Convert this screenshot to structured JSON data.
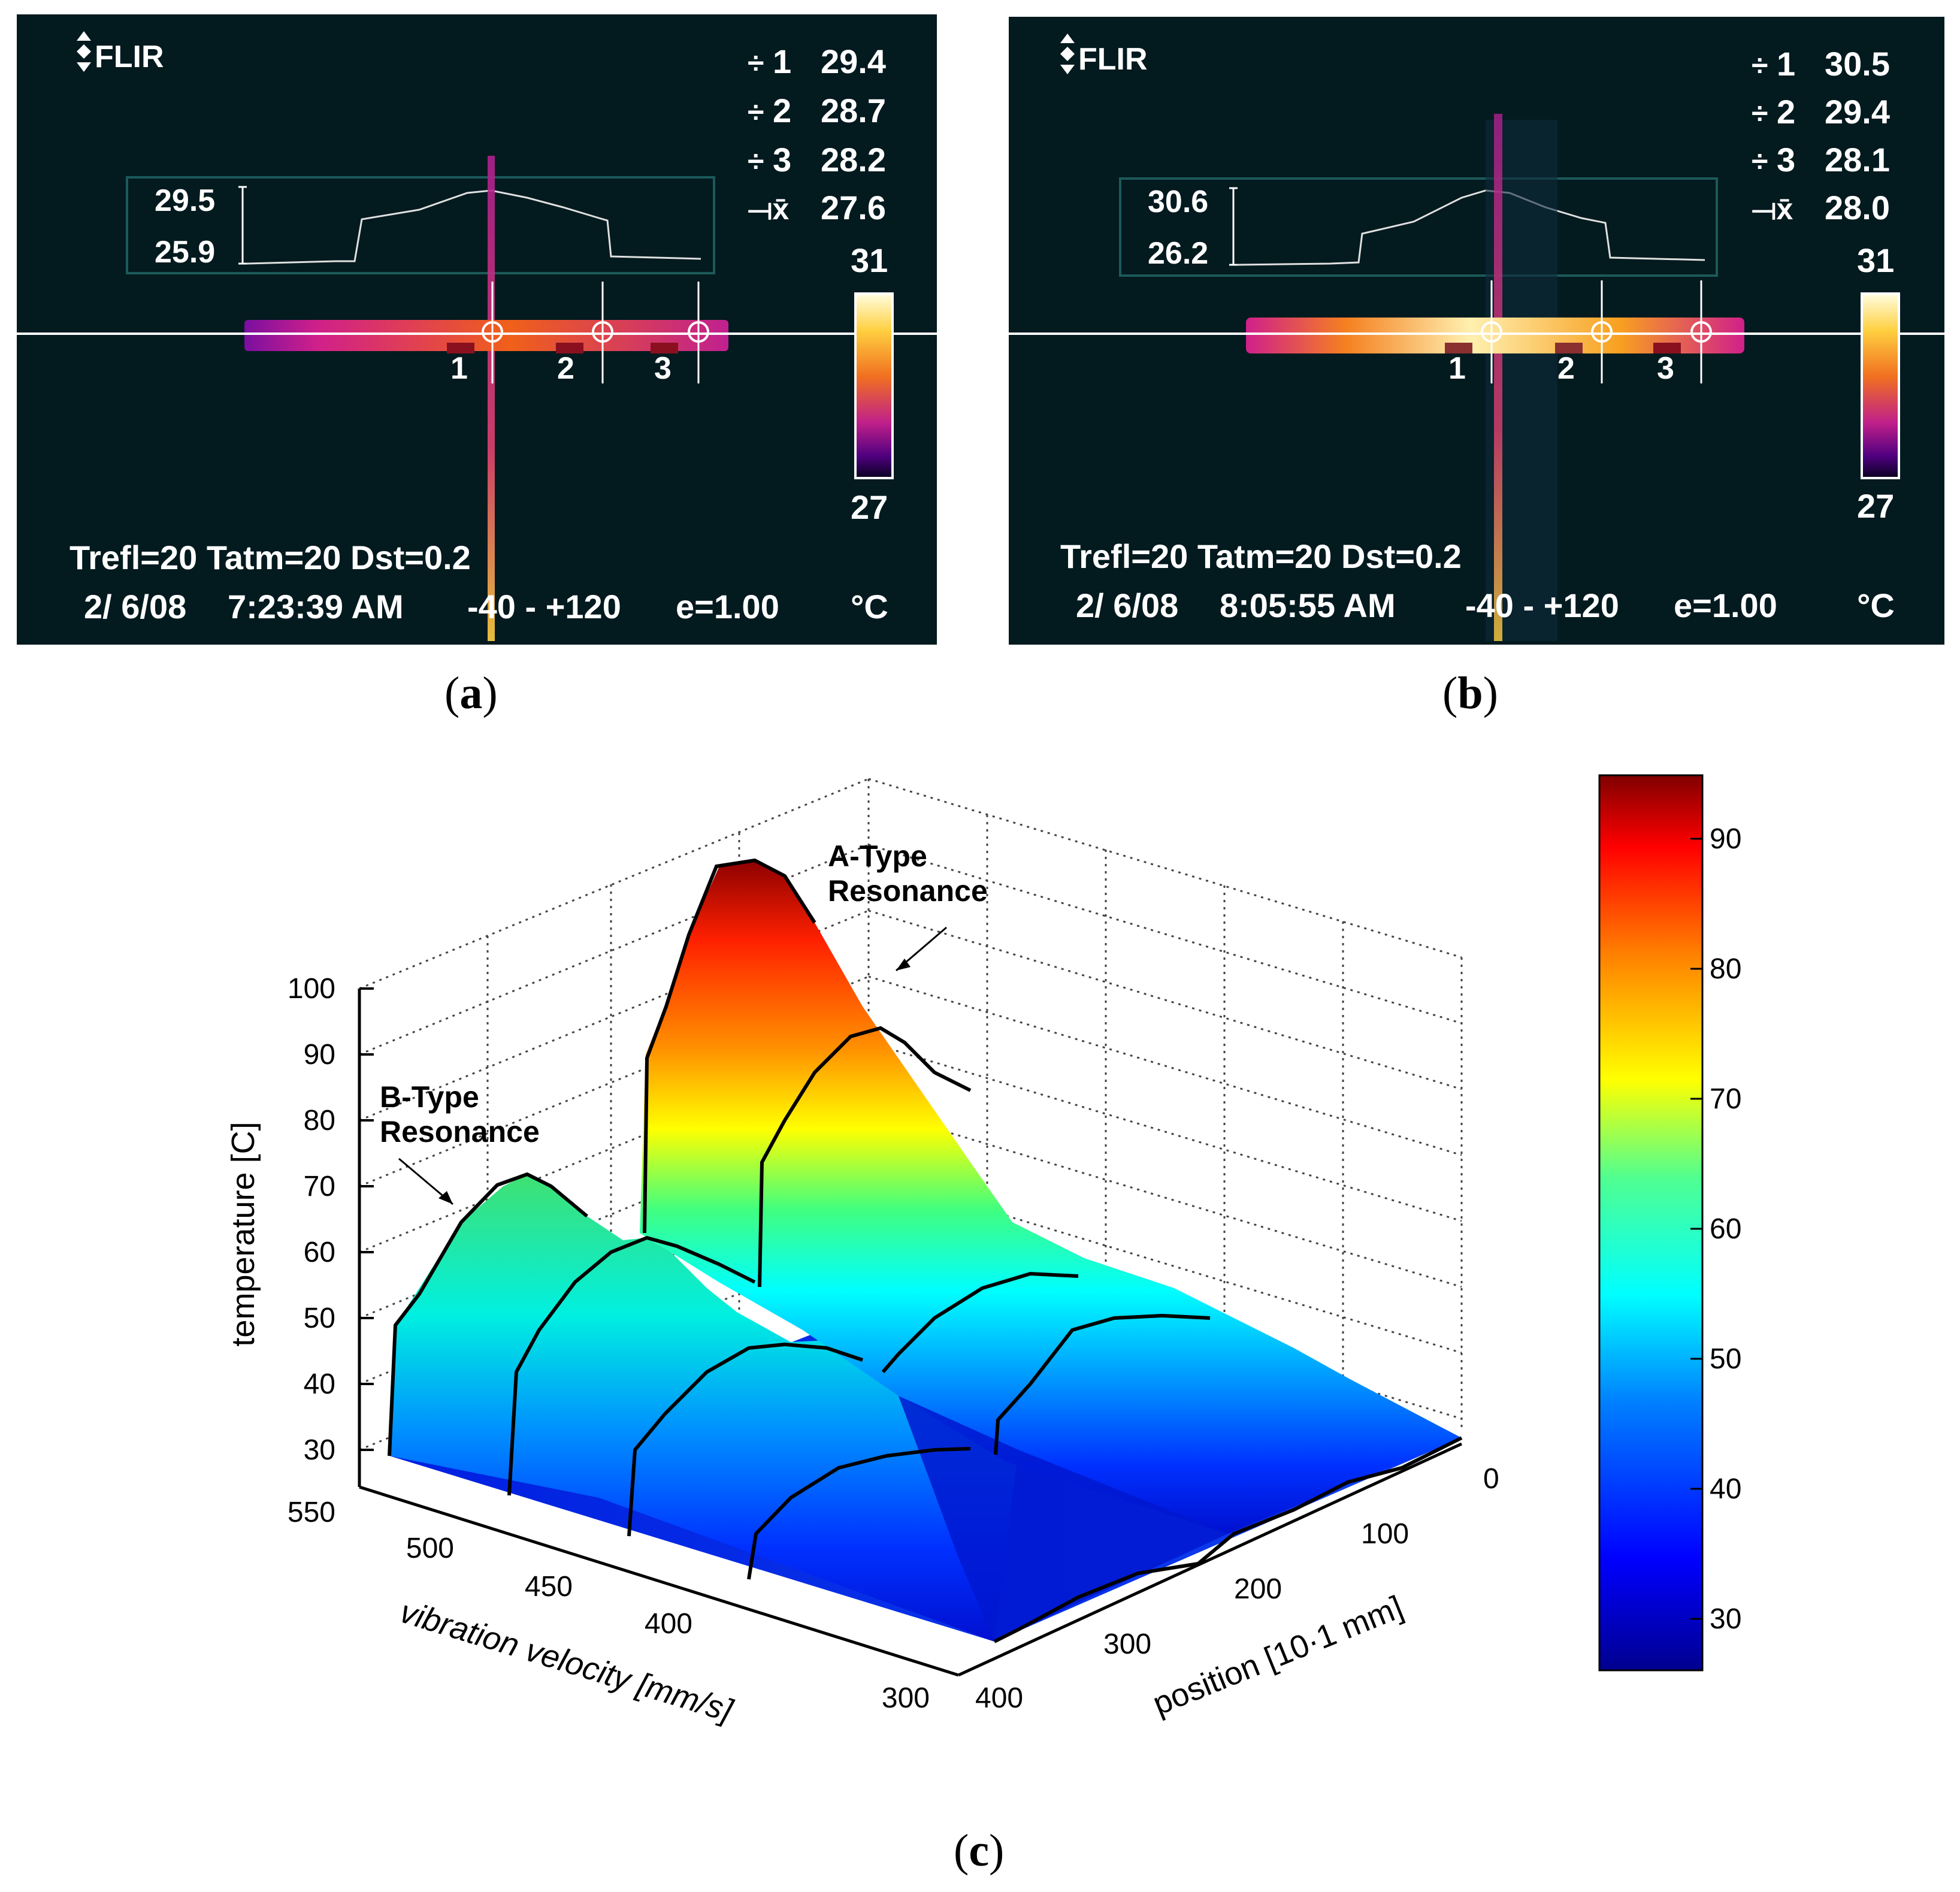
{
  "panels": [
    {
      "id": "a",
      "caption_label": "a",
      "logo": "FLIR",
      "spots": [
        {
          "label": "1",
          "value": "29.4"
        },
        {
          "label": "2",
          "value": "28.7"
        },
        {
          "label": "3",
          "value": "28.2"
        },
        {
          "label": "avg",
          "value": "27.6"
        }
      ],
      "profile_max": "29.5",
      "profile_min": "25.9",
      "scale_max": "31",
      "scale_min": "27",
      "params_line": "Trefl=20 Tatm=20 Dst=0.2",
      "date": "2/ 6/08",
      "time": "7:23:39 AM",
      "range": "-40 -  +120",
      "emissivity": "e=1.00",
      "unit": "°C",
      "marker_labels": [
        "1",
        "2",
        "3"
      ]
    },
    {
      "id": "b",
      "caption_label": "b",
      "logo": "FLIR",
      "spots": [
        {
          "label": "1",
          "value": "30.5"
        },
        {
          "label": "2",
          "value": "29.4"
        },
        {
          "label": "3",
          "value": "28.1"
        },
        {
          "label": "avg",
          "value": "28.0"
        }
      ],
      "profile_max": "30.6",
      "profile_min": "26.2",
      "scale_max": "31",
      "scale_min": "27",
      "params_line": "Trefl=20 Tatm=20 Dst=0.2",
      "date": "2/ 6/08",
      "time": "8:05:55 AM",
      "range": "-40 -  +120",
      "emissivity": "e=1.00",
      "unit": "°C",
      "marker_labels": [
        "1",
        "2",
        "3"
      ]
    }
  ],
  "chart_data": {
    "type": "surface3d",
    "caption_label": "c",
    "zlabel": "temperature [C]",
    "xlabel": "vibration velocity [mm/s]",
    "ylabel": "position [10·1 mm]",
    "z_ticks": [
      30,
      40,
      50,
      60,
      70,
      80,
      90,
      100
    ],
    "velocity_ticks": [
      550,
      500,
      450,
      400,
      300
    ],
    "position_ticks": [
      0,
      100,
      200,
      300,
      400
    ],
    "colorbar_ticks": [
      30,
      40,
      50,
      60,
      70,
      80,
      90
    ],
    "colorbar_range": [
      26,
      95
    ],
    "annotations": {
      "a_type_line1": "A-Type",
      "a_type_line2": "Resonance",
      "b_type_line1": "B-Type",
      "b_type_line2": "Resonance"
    },
    "series": [
      {
        "name": "A-Type Resonance peak",
        "value": 95
      },
      {
        "name": "B-Type Resonance peak",
        "value": 70
      }
    ],
    "colormap": [
      "#00008f",
      "#0000ff",
      "#0080ff",
      "#00ffff",
      "#80ff80",
      "#ffff00",
      "#ff8000",
      "#ff0000",
      "#800000"
    ]
  }
}
